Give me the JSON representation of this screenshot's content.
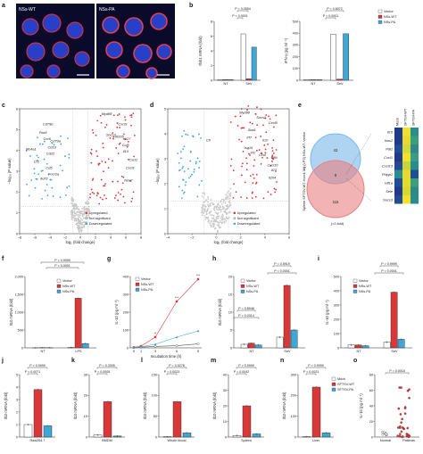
{
  "panel_labels": {
    "a": "a",
    "b": "b",
    "c": "c",
    "d": "d",
    "e": "e",
    "f": "f",
    "g": "g",
    "h": "h",
    "i": "i",
    "j": "j",
    "k": "k",
    "l": "l",
    "m": "m",
    "n": "n",
    "o": "o"
  },
  "colors": {
    "vector": "#ffffff",
    "wt": "#d93838",
    "pa": "#3fa7d6",
    "up": "#d93838",
    "down": "#3fa7d6",
    "ns": "#c8c8c8",
    "mock": "#ffffff",
    "sftsv_wt": "#d93838",
    "sftsv_pa": "#3fa7d6",
    "normal": "#ffffff",
    "patients": "#d93838"
  },
  "panel_a": {
    "left_title": "NSs-WT",
    "right_title": "NSs-PA"
  },
  "panel_b": {
    "legend": [
      "Vector",
      "NSs-WT",
      "NSs-PA"
    ],
    "left": {
      "ylabel": "Ifnb1 mRNA (fold)",
      "yticks": [
        "0",
        "2",
        "4",
        "6",
        "8"
      ],
      "categories": [
        "NT",
        "SeV"
      ],
      "pvalues": [
        "P = 0.0554",
        "P < 0.0001"
      ]
    },
    "right": {
      "ylabel": "IFN-γ (pg ml⁻¹)",
      "yticks": [
        "0",
        "100",
        "200",
        "300",
        "400",
        "500"
      ],
      "categories": [
        "NT",
        "SeV"
      ],
      "pvalues": [
        "P = 0.6072",
        "P < 0.0001"
      ]
    }
  },
  "panel_c": {
    "xlabel": "log₂ (fold change)",
    "ylabel": "−log₁₀ (P value)",
    "xticks": [
      "−8",
      "−6",
      "−4",
      "−2",
      "0",
      "2",
      "4",
      "6",
      "8"
    ],
    "yticks": [
      "0",
      "1",
      "2",
      "3",
      "4",
      "5",
      "6"
    ],
    "genes_up": [
      "Myd88",
      "Cxcl9",
      "Socs3",
      "Ifi205",
      "Il27",
      "Ccl5",
      "Il10",
      "Cxcl2",
      "Cxcl1",
      "Nos2"
    ],
    "genes_down": [
      "Cd79b",
      "Pax5",
      "Ccr6",
      "Cd19",
      "Ms4a1",
      "Cd22",
      "Cr2",
      "Cd5",
      "Fcer2a",
      "Cd79a",
      "Ikzf3"
    ],
    "legend": [
      "Upregulated",
      "Not significant",
      "Downregulated"
    ]
  },
  "panel_d": {
    "xlabel": "log₂ (fold change)",
    "ylabel": "−log₁₀ (P value)",
    "xticks": [
      "−4",
      "−2",
      "0",
      "2",
      "4",
      "6"
    ],
    "yticks": [
      "0",
      "1",
      "2",
      "3",
      "4",
      "5"
    ],
    "genes_up": [
      "Myd88",
      "Socs1",
      "Cxcl9",
      "Stat1",
      "Irf7",
      "Il10",
      "Isg15",
      "Irf1",
      "Ccl4",
      "Clfb",
      "Cxcl10",
      "Il27",
      "Il204"
    ],
    "genes_down": [
      "Cfl"
    ],
    "legend": [
      "Upregulated",
      "Not significant",
      "Downregulated"
    ]
  },
  "panel_e": {
    "venn_top": "43",
    "venn_mid": "9",
    "venn_bottom": "115",
    "top_label": "Mϕ (LPS) NSs-WT /vector",
    "bottom_label": "Spleen SFTSV-WT /mock",
    "note": "(>2-fold)",
    "cols": [
      "Mock",
      "SFTSV-WT",
      "SFTSV-PA"
    ],
    "genes": [
      "Il10",
      "Nos2",
      "Pdl1",
      "Cxcl1",
      "Cxcl13",
      "Phlpp1",
      "Hif1a",
      "Sele",
      "Socs3"
    ]
  },
  "panel_f": {
    "ylabel": "Il10 mRNA (fold)",
    "yticks": [
      "0",
      "500",
      "1,000",
      "1,500",
      "2,000"
    ],
    "categories": [
      "NT",
      "LPS"
    ],
    "legend": [
      "Vector",
      "NSs-WT",
      "NSs-PA"
    ],
    "pvalues": [
      "P > 0.9999",
      "P < 0.0001"
    ],
    "values": {
      "vector": [
        2,
        10
      ],
      "wt": [
        5,
        1390
      ],
      "pa": [
        4,
        120
      ]
    }
  },
  "panel_g": {
    "ylabel": "IL-10 (pg ml⁻¹)",
    "xlabel": "Incubation time (h)",
    "xticks": [
      "0",
      "1",
      "3",
      "6",
      "9"
    ],
    "yticks": [
      "0",
      "100",
      "200",
      "300",
      "400"
    ],
    "legend": [
      "Vector",
      "NSs-WT",
      "NSs-PA"
    ],
    "stars": [
      "**",
      "***",
      "***"
    ],
    "x": [
      0,
      1,
      3,
      6,
      9
    ],
    "series": [
      {
        "name": "Vector",
        "values": [
          2,
          4,
          8,
          12,
          22
        ]
      },
      {
        "name": "NSs-WT",
        "values": [
          3,
          10,
          60,
          260,
          385
        ]
      },
      {
        "name": "NSs-PA",
        "values": [
          2,
          6,
          20,
          60,
          95
        ]
      }
    ]
  },
  "panel_h": {
    "ylabel": "Il10 mRNA (fold)",
    "yticks": [
      "0",
      "5",
      "10",
      "15",
      "20"
    ],
    "categories": [
      "NT",
      "SeV"
    ],
    "legend": [
      "Vector",
      "NSs-WT",
      "NSs-PA"
    ],
    "pvalues": [
      "P = 0.5919",
      "P < 0.0001",
      "P = 0.8948",
      "P = 0.0314"
    ],
    "values": {
      "vector": [
        1,
        3
      ],
      "wt": [
        1.3,
        17.5
      ],
      "pa": [
        0.8,
        5
      ]
    }
  },
  "panel_i": {
    "ylabel": "IL-10 (pg ml⁻¹)",
    "yticks": [
      "0",
      "100",
      "200",
      "300",
      "400",
      "500"
    ],
    "categories": [
      "NT",
      "SeV"
    ],
    "legend": [
      "Vector",
      "NSs-WT",
      "NSs-PA"
    ],
    "pvalues": [
      "P > 0.9999",
      "P < 0.0001"
    ],
    "values": {
      "vector": [
        20,
        40
      ],
      "wt": [
        20,
        390
      ],
      "pa": [
        15,
        60
      ]
    }
  },
  "panel_j": {
    "ylabel": "Il10 mRNA (fold)",
    "yticks": [
      "0",
      "1",
      "2",
      "3",
      "4",
      "5"
    ],
    "category": "Raw264.7",
    "pvalues": [
      "P > 0.9999",
      "P = 0.0071"
    ],
    "values": [
      1,
      3.8,
      0.9
    ]
  },
  "panel_k": {
    "ylabel": "Il10 mRNA (fold)",
    "yticks": [
      "0",
      "10",
      "20",
      "30"
    ],
    "category": "BMDM",
    "pvalues": [
      "P = 0.3305",
      "P = 0.0005"
    ],
    "values": [
      1,
      17,
      0.5
    ]
  },
  "panel_l": {
    "ylabel": "Il10 mRNA (fold)",
    "yticks": [
      "0",
      "50",
      "100",
      "150"
    ],
    "category": "Whole blood",
    "pvalues": [
      "P = 0.5278",
      "P = 0.0023"
    ],
    "values": [
      1,
      85,
      10
    ]
  },
  "panel_m": {
    "ylabel": "Il10 mRNA (fold)",
    "yticks": [
      "0",
      "10",
      "20",
      "30",
      "40"
    ],
    "category": "Spleen",
    "pvalues": [
      "P > 0.9999",
      "P = 0.0042"
    ],
    "values": [
      1,
      20,
      2
    ]
  },
  "panel_n": {
    "ylabel": "Il10 mRNA (fold)",
    "yticks": [
      "0",
      "100",
      "200",
      "300"
    ],
    "category": "Liver",
    "legend": [
      "Mock",
      "SFTSV-WT",
      "SFTSV-PA"
    ],
    "pvalues": [
      "P > 0.9999",
      "P = 0.0023"
    ],
    "values": [
      2,
      240,
      20
    ]
  },
  "panel_o": {
    "ylabel": "IL-10 (pg ml⁻¹)",
    "yticks": [
      "0",
      "20",
      "40",
      "60",
      "80"
    ],
    "categories": [
      "Normal",
      "Patients"
    ],
    "pvalues": [
      "P = 0.0018"
    ]
  }
}
